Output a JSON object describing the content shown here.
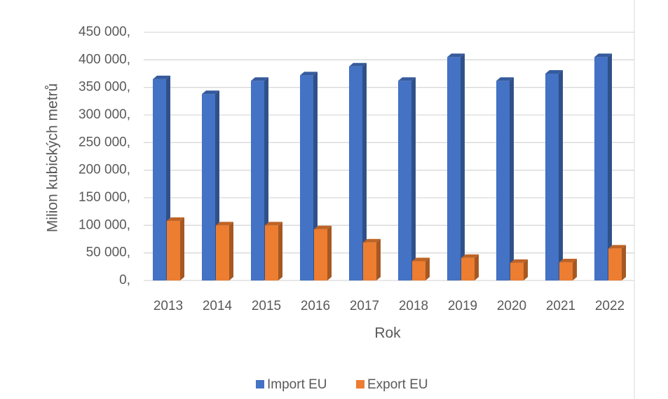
{
  "chart_data": {
    "type": "bar3d",
    "xlabel": "Rok",
    "ylabel": "Milion kubických metrů",
    "categories": [
      "2013",
      "2014",
      "2015",
      "2016",
      "2017",
      "2018",
      "2019",
      "2020",
      "2021",
      "2022"
    ],
    "series": [
      {
        "name": "Import EU",
        "color": "#4472c4",
        "values": [
          365000,
          338000,
          362000,
          372000,
          388000,
          362000,
          405000,
          362000,
          375000,
          405000
        ]
      },
      {
        "name": "Export EU",
        "color": "#ed7d31",
        "values": [
          108000,
          100000,
          100000,
          93000,
          69000,
          35000,
          41000,
          32000,
          33000,
          58000
        ]
      }
    ],
    "ylim": [
      0,
      450000
    ],
    "yticks": [
      {
        "value": 0,
        "label": "0,"
      },
      {
        "value": 50000,
        "label": "50 000,"
      },
      {
        "value": 100000,
        "label": "100 000,"
      },
      {
        "value": 150000,
        "label": "150 000,"
      },
      {
        "value": 200000,
        "label": "200 000,"
      },
      {
        "value": 250000,
        "label": "250 000,"
      },
      {
        "value": 300000,
        "label": "300 000,"
      },
      {
        "value": 350000,
        "label": "350 000,"
      },
      {
        "value": 400000,
        "label": "400 000,"
      },
      {
        "value": 450000,
        "label": "450 000,"
      }
    ],
    "grid": true,
    "legend": "bottom"
  }
}
